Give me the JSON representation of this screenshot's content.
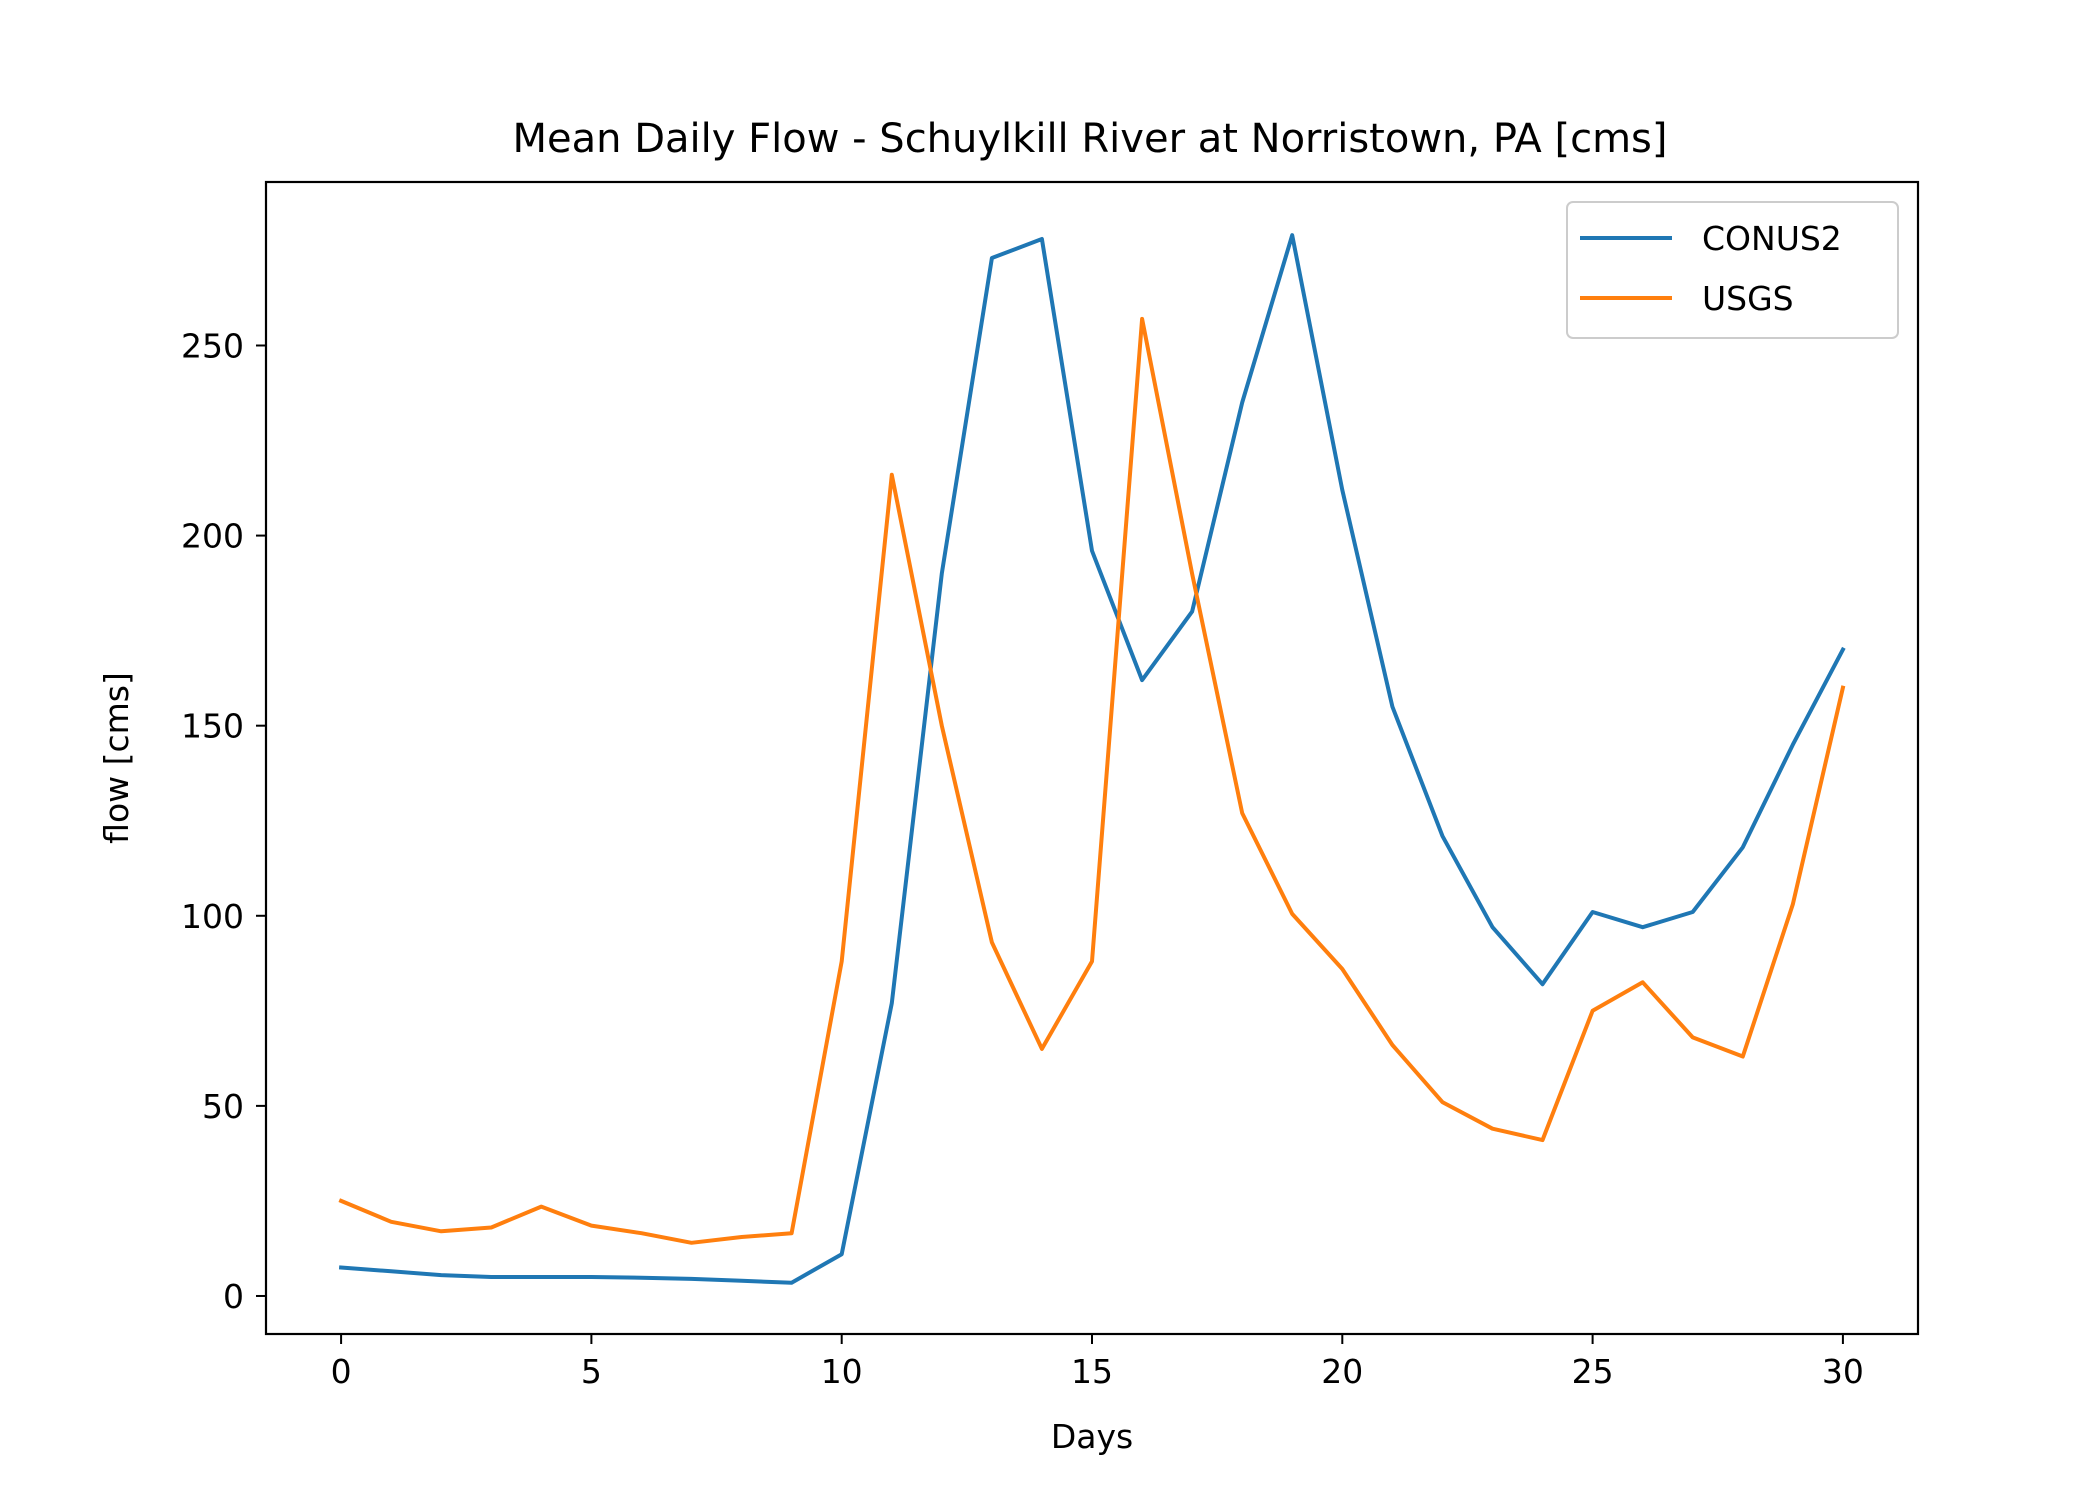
{
  "chart_data": {
    "type": "line",
    "title": "Mean Daily Flow - Schuylkill River at Norristown, PA [cms]",
    "xlabel": "Days",
    "ylabel": "flow [cms]",
    "xlim": [
      -1.5,
      31.5
    ],
    "ylim": [
      -10,
      293
    ],
    "xticks": [
      0,
      5,
      10,
      15,
      20,
      25,
      30
    ],
    "yticks": [
      0,
      50,
      100,
      150,
      200,
      250
    ],
    "grid": false,
    "legend_position": "top-right",
    "x": [
      0,
      1,
      2,
      3,
      4,
      5,
      6,
      7,
      8,
      9,
      10,
      11,
      12,
      13,
      14,
      15,
      16,
      17,
      18,
      19,
      20,
      21,
      22,
      23,
      24,
      25,
      26,
      27,
      28,
      29,
      30
    ],
    "series": [
      {
        "name": "CONUS2",
        "color": "#1f77b4",
        "values": [
          7.5,
          6.5,
          5.5,
          5,
          5,
          5,
          4.8,
          4.5,
          4,
          3.5,
          11,
          77,
          190,
          273,
          278,
          196,
          162,
          180,
          235,
          279,
          212,
          155,
          121,
          97,
          82,
          101,
          97,
          101,
          118,
          145,
          170
        ]
      },
      {
        "name": "USGS",
        "color": "#ff7f0e",
        "values": [
          25,
          19.5,
          17,
          18,
          23.5,
          18.5,
          16.5,
          14,
          15.5,
          16.5,
          88,
          216,
          150,
          93,
          65,
          88,
          257,
          190,
          127,
          100.5,
          86,
          66,
          51,
          44,
          41,
          75,
          82.5,
          68,
          63,
          103,
          160
        ]
      }
    ]
  }
}
